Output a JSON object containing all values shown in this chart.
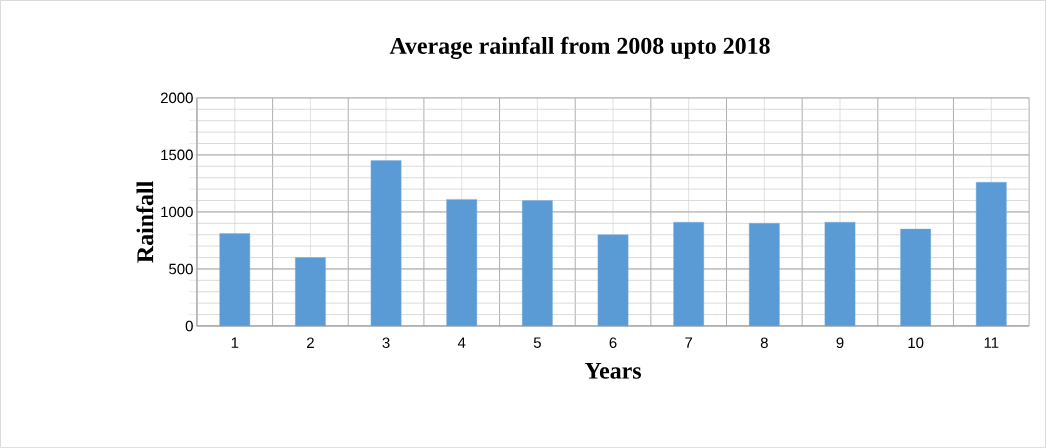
{
  "chart_data": {
    "type": "bar",
    "title": "Average rainfall from 2008 upto 2018",
    "xlabel": "Years",
    "ylabel": "Rainfall",
    "categories": [
      "1",
      "2",
      "3",
      "4",
      "5",
      "6",
      "7",
      "8",
      "9",
      "10",
      "11"
    ],
    "values": [
      810,
      600,
      1450,
      1110,
      1100,
      800,
      910,
      900,
      910,
      850,
      1260
    ],
    "color": "#5b9bd5",
    "ylim": [
      0,
      2000
    ],
    "yticks": [
      0,
      500,
      1000,
      1500,
      2000
    ],
    "grid": true
  }
}
